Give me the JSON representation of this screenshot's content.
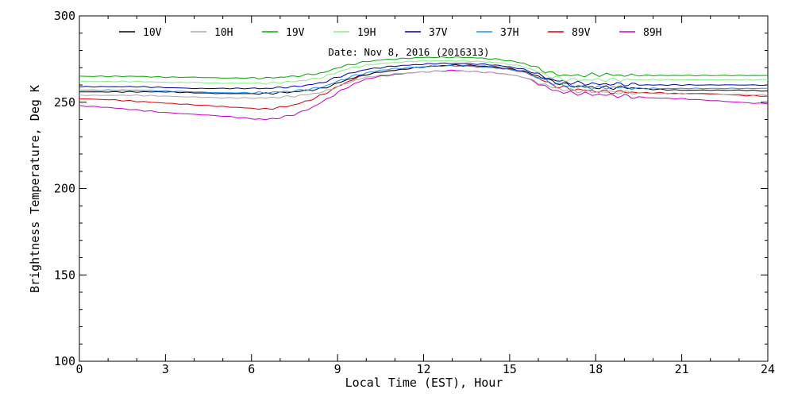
{
  "chart_data": {
    "type": "line",
    "title": "",
    "annotation": "Date: Nov  8, 2016 (2016313)",
    "xlabel": "Local Time (EST), Hour",
    "ylabel": "Brightness Temperature, Deg K",
    "xlim": [
      0,
      24
    ],
    "ylim": [
      100,
      300
    ],
    "xticks": [
      0,
      3,
      6,
      9,
      12,
      15,
      18,
      21,
      24
    ],
    "yticks": [
      100,
      150,
      200,
      250,
      300
    ],
    "grid": false,
    "legend_placement": "top",
    "x": [
      0,
      1,
      2,
      3,
      4,
      5,
      6,
      6.5,
      7,
      7.5,
      8,
      8.5,
      9,
      9.5,
      10,
      10.5,
      11,
      11.5,
      12,
      12.5,
      13,
      13.5,
      14,
      14.5,
      15,
      15.5,
      16,
      16.5,
      17,
      17.5,
      18,
      18.5,
      19,
      19.5,
      20,
      21,
      22,
      23,
      24
    ],
    "series": [
      {
        "name": "10V",
        "color": "#000000",
        "values": [
          256,
          256,
          256,
          256,
          255.5,
          255,
          255,
          255,
          255.5,
          256,
          257,
          258,
          261,
          264,
          266,
          267.5,
          268.5,
          269.5,
          270.5,
          271,
          271.5,
          271.5,
          271,
          270.5,
          269.5,
          268,
          265,
          262,
          260,
          259,
          258.5,
          258.5,
          258.5,
          258,
          257.5,
          257,
          257,
          257,
          256.5
        ]
      },
      {
        "name": "10H",
        "color": "#aaaaaa",
        "values": [
          254,
          254,
          254,
          253.5,
          253,
          252.5,
          252.5,
          252.5,
          253,
          253.5,
          254.5,
          256,
          259,
          262,
          264.5,
          265.5,
          266.5,
          267,
          267.5,
          268,
          268,
          268,
          267.5,
          267,
          266,
          264.5,
          261.5,
          258.5,
          257,
          256.5,
          256,
          256,
          255.5,
          255.5,
          255,
          255,
          254.5,
          254.5,
          254
        ]
      },
      {
        "name": "19V",
        "color": "#00aa00",
        "values": [
          265,
          265,
          265,
          264.5,
          264.5,
          264,
          264,
          264,
          264.5,
          265,
          266,
          267,
          270,
          272,
          273.5,
          274.5,
          275,
          275.5,
          276,
          276,
          276,
          276,
          275.5,
          275,
          274,
          272.5,
          269.5,
          266.5,
          265.5,
          265.5,
          266,
          266,
          265.5,
          265.5,
          265.5,
          265.5,
          265.5,
          265.5,
          265.5
        ]
      },
      {
        "name": "19H",
        "color": "#88ee88",
        "values": [
          262,
          262,
          262,
          261.5,
          261.5,
          261,
          261,
          261,
          261.5,
          262,
          263,
          264.5,
          267.5,
          270,
          271.5,
          272.5,
          273,
          273.5,
          274,
          274,
          274,
          274,
          273.5,
          273,
          272,
          270.5,
          267.5,
          264.5,
          263,
          263,
          263,
          263,
          263,
          263,
          263,
          263,
          263,
          263,
          263
        ]
      },
      {
        "name": "37V",
        "color": "#0000aa",
        "values": [
          259,
          259,
          259,
          258.5,
          258,
          258,
          258,
          258,
          258.5,
          259,
          260,
          261.5,
          264.5,
          267,
          269,
          270,
          271,
          271.5,
          272,
          272.5,
          272.5,
          272.5,
          272,
          271.5,
          270.5,
          269,
          266,
          263,
          261.5,
          261,
          260.5,
          260.5,
          260.5,
          260,
          260,
          260,
          260,
          260,
          260
        ]
      },
      {
        "name": "37H",
        "color": "#1e90ff",
        "values": [
          257,
          257,
          257,
          256.5,
          256,
          255.5,
          255.5,
          255.5,
          256,
          256.5,
          257.5,
          259,
          262,
          265,
          267,
          268.5,
          269.5,
          270,
          270.5,
          271,
          271,
          271,
          270.5,
          270,
          269,
          267.5,
          264.5,
          261,
          259.5,
          259,
          258.5,
          258.5,
          258.5,
          258,
          258,
          258,
          258,
          258,
          258
        ]
      },
      {
        "name": "89V",
        "color": "#dd0000",
        "values": [
          252,
          251.5,
          250.5,
          249.5,
          248.5,
          247.5,
          246.5,
          246,
          247,
          248.5,
          251,
          254.5,
          259,
          263,
          266,
          267.5,
          268.5,
          269.5,
          270.5,
          271,
          271.5,
          271,
          270.5,
          270,
          269,
          267.5,
          264,
          260,
          258,
          257,
          256.5,
          256,
          256,
          255.5,
          255.5,
          255,
          255,
          254,
          253.5
        ]
      },
      {
        "name": "89H",
        "color": "#cc00cc",
        "values": [
          248,
          247,
          245.5,
          244,
          243,
          242,
          240.5,
          240,
          241,
          243,
          246,
          250.5,
          255.5,
          260,
          263.5,
          265,
          266,
          267,
          267.5,
          268,
          268.5,
          268,
          267.5,
          267,
          266,
          264.5,
          261,
          257,
          255.5,
          255,
          254.5,
          254,
          253.5,
          253,
          252.5,
          252,
          251,
          250,
          249
        ]
      }
    ]
  }
}
